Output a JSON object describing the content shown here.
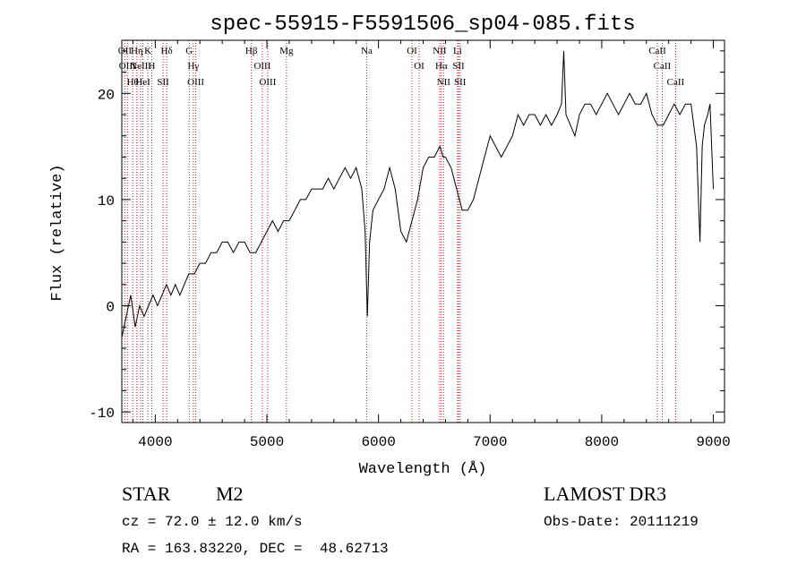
{
  "chart_data": {
    "type": "line",
    "title": "spec-55915-F5591506_sp04-085.fits",
    "xlabel": "Wavelength (Å)",
    "ylabel": "Flux (relative)",
    "xlim": [
      3700,
      9100
    ],
    "ylim": [
      -11,
      25
    ],
    "xticks": [
      4000,
      5000,
      6000,
      7000,
      8000,
      9000
    ],
    "xtick_labels": [
      "4000",
      "5000",
      "6000",
      "7000",
      "8000",
      "9000"
    ],
    "yticks": [
      -10,
      0,
      10,
      20
    ],
    "ytick_labels": [
      "-10",
      "0",
      "10",
      "20"
    ],
    "series": [
      {
        "name": "flux",
        "x": [
          3700,
          3740,
          3780,
          3820,
          3860,
          3900,
          3940,
          3980,
          4020,
          4060,
          4100,
          4140,
          4180,
          4220,
          4260,
          4300,
          4350,
          4400,
          4450,
          4500,
          4550,
          4600,
          4650,
          4700,
          4750,
          4800,
          4850,
          4900,
          4950,
          5000,
          5050,
          5100,
          5150,
          5200,
          5250,
          5300,
          5350,
          5400,
          5450,
          5500,
          5550,
          5600,
          5650,
          5700,
          5750,
          5800,
          5850,
          5880,
          5900,
          5920,
          5950,
          6000,
          6050,
          6100,
          6150,
          6200,
          6250,
          6300,
          6350,
          6400,
          6450,
          6500,
          6550,
          6580,
          6600,
          6650,
          6700,
          6750,
          6800,
          6850,
          6900,
          6950,
          7000,
          7050,
          7100,
          7150,
          7200,
          7250,
          7300,
          7350,
          7400,
          7450,
          7500,
          7550,
          7600,
          7640,
          7660,
          7680,
          7720,
          7760,
          7800,
          7850,
          7900,
          7950,
          8000,
          8050,
          8100,
          8150,
          8200,
          8250,
          8300,
          8350,
          8400,
          8450,
          8500,
          8550,
          8600,
          8650,
          8700,
          8750,
          8800,
          8850,
          8880,
          8900,
          8920,
          8950,
          8970,
          9000
        ],
        "y": [
          -3,
          -1,
          1,
          -2,
          0,
          -1,
          0,
          1,
          0,
          1,
          2,
          1,
          2,
          1,
          2,
          3,
          3,
          4,
          4,
          5,
          5,
          6,
          6,
          5,
          6,
          6,
          5,
          5,
          6,
          7,
          8,
          7,
          8,
          8,
          9,
          10,
          10,
          11,
          11,
          11,
          12,
          11,
          12,
          13,
          12,
          13,
          11,
          7,
          -1,
          6,
          9,
          10,
          11,
          13,
          11,
          7,
          6,
          8,
          10,
          13,
          14,
          14,
          15,
          14,
          14,
          13,
          11,
          9,
          9,
          10,
          12,
          14,
          16,
          15,
          14,
          15,
          16,
          18,
          17,
          18,
          18,
          17,
          18,
          17,
          18,
          19,
          24,
          18,
          17,
          16,
          18,
          19,
          19,
          18,
          19,
          20,
          19,
          18,
          19,
          20,
          19,
          19,
          20,
          18,
          17,
          17,
          18,
          19,
          18,
          19,
          19,
          15,
          6,
          15,
          17,
          18,
          19,
          11
        ]
      }
    ],
    "line_markers": [
      {
        "wavelength": 3727,
        "label": "OII"
      },
      {
        "wavelength": 3750,
        "label": "OIII"
      },
      {
        "wavelength": 3798,
        "label": "Hθ"
      },
      {
        "wavelength": 3835,
        "label": "Hη"
      },
      {
        "wavelength": 3869,
        "label": "NeIII"
      },
      {
        "wavelength": 3889,
        "label": "HeI"
      },
      {
        "wavelength": 3934,
        "label": "K"
      },
      {
        "wavelength": 3969,
        "label": "H"
      },
      {
        "wavelength": 4070,
        "label": "SII"
      },
      {
        "wavelength": 4102,
        "label": "Hδ"
      },
      {
        "wavelength": 4304,
        "label": "G"
      },
      {
        "wavelength": 4341,
        "label": "Hγ"
      },
      {
        "wavelength": 4363,
        "label": "OIII"
      },
      {
        "wavelength": 4861,
        "label": "Hβ"
      },
      {
        "wavelength": 4959,
        "label": "OIII"
      },
      {
        "wavelength": 5007,
        "label": "OIII"
      },
      {
        "wavelength": 5175,
        "label": "Mg"
      },
      {
        "wavelength": 5894,
        "label": "Na"
      },
      {
        "wavelength": 6300,
        "label": "OI"
      },
      {
        "wavelength": 6364,
        "label": "OI"
      },
      {
        "wavelength": 6548,
        "label": "NII"
      },
      {
        "wavelength": 6563,
        "label": "Hα"
      },
      {
        "wavelength": 6583,
        "label": "NII"
      },
      {
        "wavelength": 6708,
        "label": "Li"
      },
      {
        "wavelength": 6717,
        "label": "SII"
      },
      {
        "wavelength": 6731,
        "label": "SII"
      },
      {
        "wavelength": 8498,
        "label": "CaII"
      },
      {
        "wavelength": 8542,
        "label": "CaII"
      },
      {
        "wavelength": 8662,
        "label": "CaII"
      }
    ]
  },
  "info": {
    "class": "STAR",
    "subclass": "M2",
    "survey": "LAMOST DR3",
    "cz": "cz = 72.0 ± 12.0 km/s",
    "obs_date": "Obs-Date: 20111219",
    "radec": "RA = 163.83220, DEC =  48.62713"
  },
  "colors": {
    "line": "#000000",
    "marker": "#cc2222"
  }
}
